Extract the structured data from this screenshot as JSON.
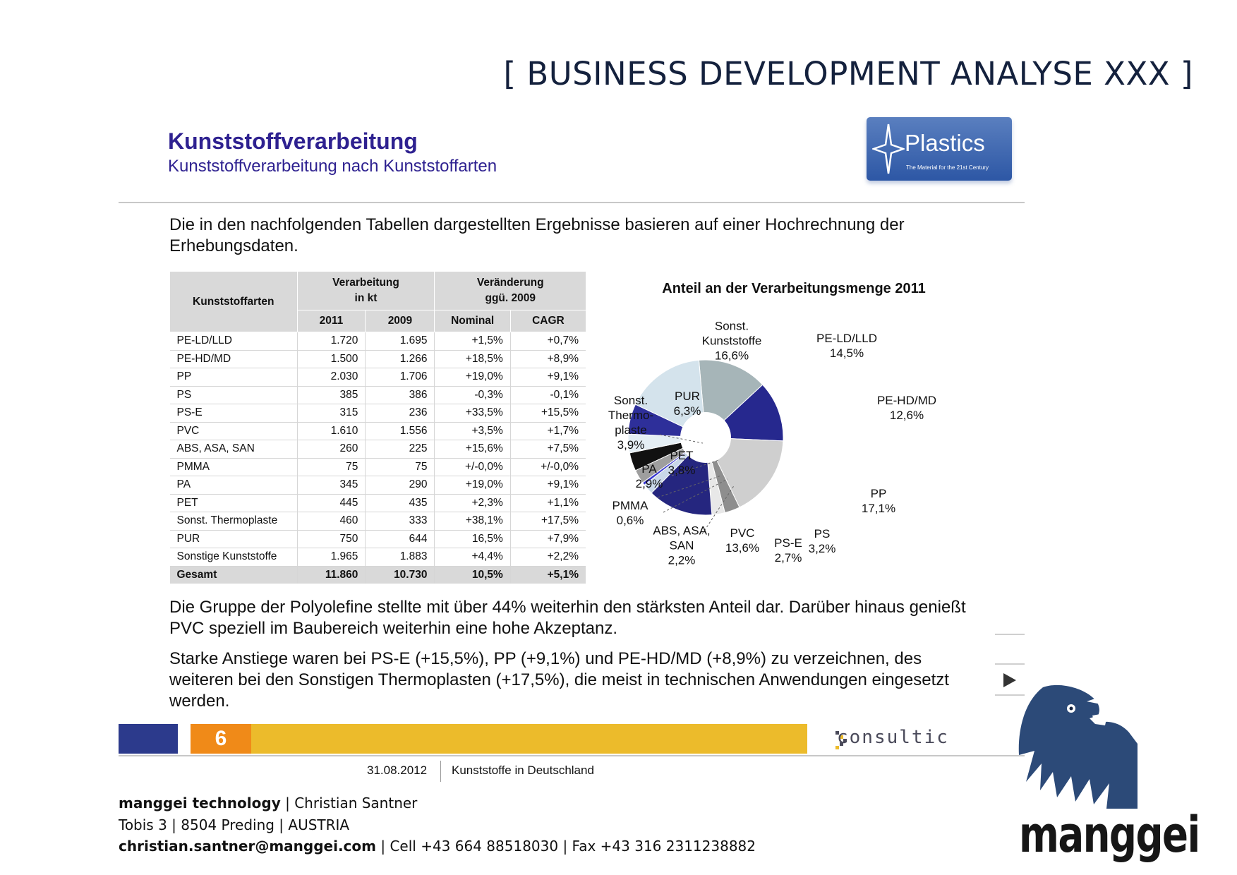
{
  "header": {
    "title": "[ BUSINESS DEVELOPMENT ANALYSE XXX ]"
  },
  "slide": {
    "title": "Kunststoffverarbeitung",
    "subtitle": "Kunststoffverarbeitung nach Kunststoffarten",
    "logo": {
      "name": "Plastics",
      "tagline": "The Material for the 21st Century"
    },
    "intro": "Die in den nachfolgenden Tabellen dargestellten Ergebnisse basieren auf einer Hochrechnung der Erhebungsdaten.",
    "table": {
      "headers": {
        "col1": "Kunststoffarten",
        "group1_line1": "Verarbeitung",
        "group1_line2": "in kt",
        "group2_line1": "Veränderung",
        "group2_line2": "ggü. 2009",
        "y2011": "2011",
        "y2009": "2009",
        "nominal": "Nominal",
        "cagr": "CAGR"
      },
      "rows": [
        [
          "PE-LD/LLD",
          "1.720",
          "1.695",
          "+1,5%",
          "+0,7%"
        ],
        [
          "PE-HD/MD",
          "1.500",
          "1.266",
          "+18,5%",
          "+8,9%"
        ],
        [
          "PP",
          "2.030",
          "1.706",
          "+19,0%",
          "+9,1%"
        ],
        [
          "PS",
          "385",
          "386",
          "-0,3%",
          "-0,1%"
        ],
        [
          "PS-E",
          "315",
          "236",
          "+33,5%",
          "+15,5%"
        ],
        [
          "PVC",
          "1.610",
          "1.556",
          "+3,5%",
          "+1,7%"
        ],
        [
          "ABS, ASA, SAN",
          "260",
          "225",
          "+15,6%",
          "+7,5%"
        ],
        [
          "PMMA",
          "75",
          "75",
          "+/-0,0%",
          "+/-0,0%"
        ],
        [
          "PA",
          "345",
          "290",
          "+19,0%",
          "+9,1%"
        ],
        [
          "PET",
          "445",
          "435",
          "+2,3%",
          "+1,1%"
        ],
        [
          "Sonst. Thermoplaste",
          "460",
          "333",
          "+38,1%",
          "+17,5%"
        ],
        [
          "PUR",
          "750",
          "644",
          "16,5%",
          "+7,9%"
        ],
        [
          "Sonstige Kunststoffe",
          "1.965",
          "1.883",
          "+4,4%",
          "+2,2%"
        ]
      ],
      "total": [
        "Gesamt",
        "11.860",
        "10.730",
        "10,5%",
        "+5,1%"
      ]
    },
    "para1": "Die Gruppe der Polyolefine stellte mit über 44% weiterhin den stärksten Anteil dar. Darüber hinaus genießt PVC speziell im Baubereich weiterhin eine hohe Akzeptanz.",
    "para2": "Starke Anstiege waren bei PS-E (+15,5%), PP (+9,1%) und PE-HD/MD (+8,9%) zu verzeichnen, des weiteren bei den Sonstigen Thermoplasten (+17,5%), die meist in technischen Anwendungen eingesetzt werden.",
    "page_number": "6",
    "brand": "consultic",
    "footer_date": "31.08.2012",
    "footer_topic": "Kunststoffe in Deutschland"
  },
  "chart_data": {
    "type": "pie",
    "title": "Anteil an der Verarbeitungsmenge 2011",
    "labels": [
      "PE-LD/LLD",
      "PE-HD/MD",
      "PP",
      "PS",
      "PS-E",
      "PVC",
      "ABS, ASA, SAN",
      "PMMA",
      "PA",
      "PET",
      "Sonst. Thermoplaste",
      "PUR",
      "Sonst. Kunststoffe"
    ],
    "display_labels": [
      "PE-LD/LLD\n14,5%",
      "PE-HD/MD\n12,6%",
      "PP\n17,1%",
      "PS\n3,2%",
      "PS-E\n2,7%",
      "PVC\n13,6%",
      "ABS, ASA,\nSAN\n2,2%",
      "PMMA\n0,6%",
      "PA\n2,9%",
      "PET\n3,8%",
      "Sonst.\nThermo-\nplaste\n3,9%",
      "PUR\n6,3%",
      "Sonst.\nKunststoffe\n16,6%"
    ],
    "values": [
      14.5,
      12.6,
      17.1,
      3.2,
      2.7,
      13.6,
      2.2,
      0.6,
      2.9,
      3.8,
      3.9,
      6.3,
      16.6
    ],
    "colors": [
      "#a6b5b8",
      "#26288e",
      "#cfcfcf",
      "#8e8e8e",
      "#e8e8e8",
      "#25267f",
      "#c9d8e8",
      "#3a3ad0",
      "#9e9e9e",
      "#111111",
      "#e4eef4",
      "#2e2f9a",
      "#d4e3ec"
    ]
  },
  "footer": {
    "company": "manggei technology",
    "person": "Christian Santner",
    "street": "Tobis 3",
    "city": "8504 Preding",
    "country": "AUSTRIA",
    "email": "christian.santner@manggei.com",
    "cell": "Cell +43 664 88518030",
    "fax": "Fax +43 316 2311238882",
    "logo_word": "manggei"
  }
}
